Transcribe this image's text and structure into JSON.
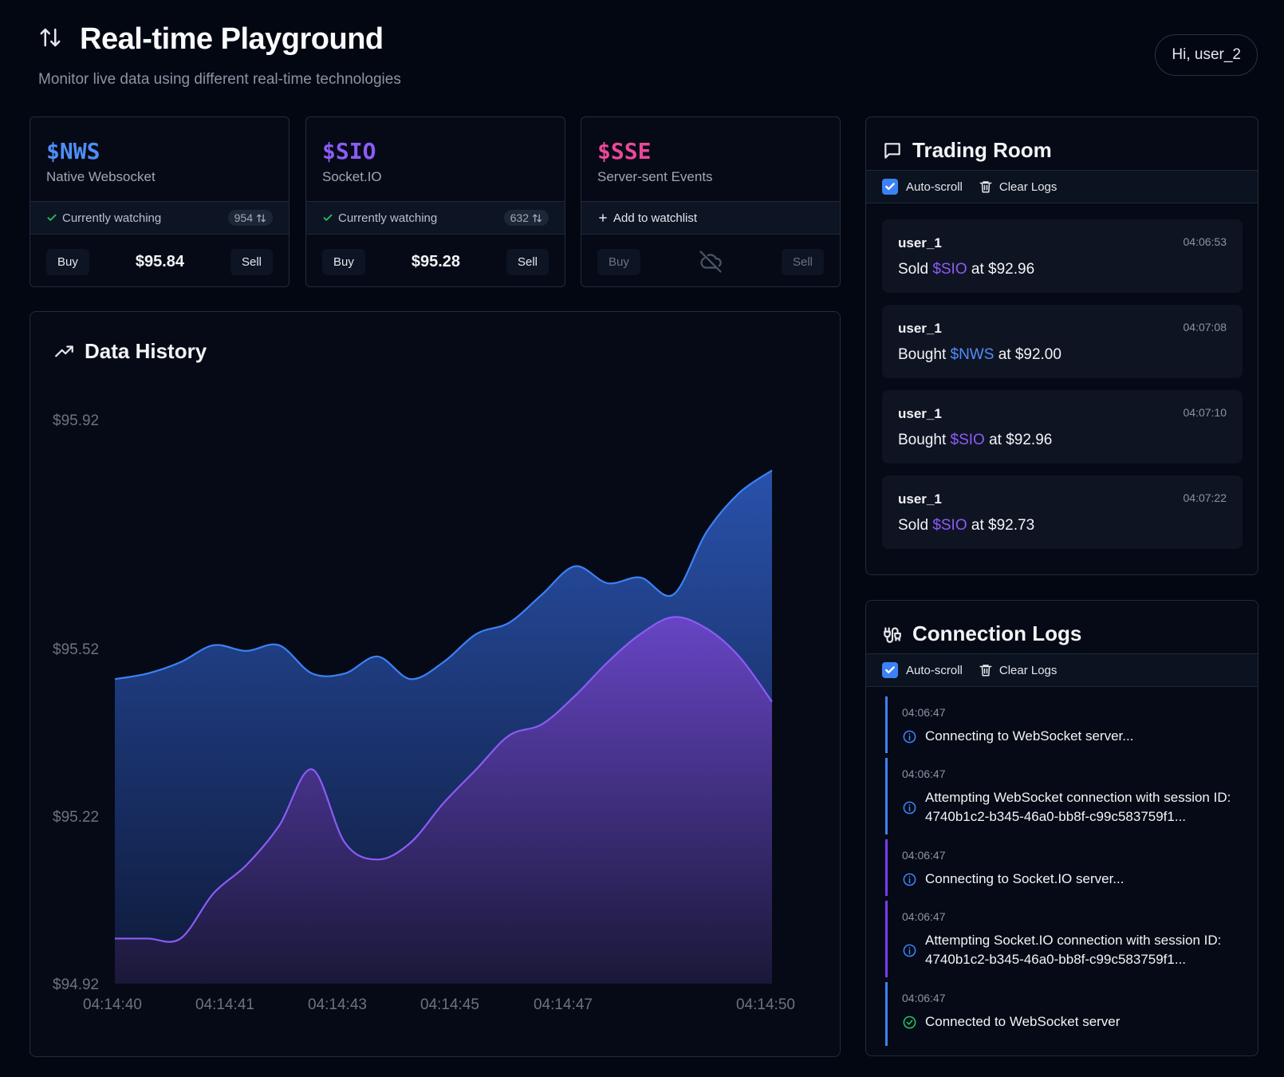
{
  "header": {
    "title": "Real-time Playground",
    "subtitle": "Monitor live data using different real-time technologies",
    "user_greeting": "Hi, user_2"
  },
  "tickers": [
    {
      "symbol": "$NWS",
      "name": "Native Websocket",
      "status": "Currently watching",
      "watchers": "954",
      "price": "$95.84",
      "buy": "Buy",
      "sell": "Sell",
      "color": "#4f8ef7"
    },
    {
      "symbol": "$SIO",
      "name": "Socket.IO",
      "status": "Currently watching",
      "watchers": "632",
      "price": "$95.28",
      "buy": "Buy",
      "sell": "Sell",
      "color": "#8b5cf6"
    },
    {
      "symbol": "$SSE",
      "name": "Server-sent Events",
      "action": "Add to watchlist",
      "buy": "Buy",
      "sell": "Sell",
      "color": "#ec4899"
    }
  ],
  "history": {
    "title": "Data History"
  },
  "chart_data": {
    "type": "area",
    "x": [
      "04:14:40",
      "04:14:40.5",
      "04:14:41",
      "04:14:41.5",
      "04:14:42",
      "04:14:42.5",
      "04:14:43",
      "04:14:43.5",
      "04:14:44",
      "04:14:44.5",
      "04:14:45",
      "04:14:45.5",
      "04:14:46",
      "04:14:46.5",
      "04:14:47",
      "04:14:47.5",
      "04:14:48",
      "04:14:48.5",
      "04:14:49",
      "04:14:49.5",
      "04:14:50"
    ],
    "x_tick_labels": [
      "04:14:40",
      "04:14:41",
      "04:14:43",
      "04:14:45",
      "04:14:47",
      "04:14:50"
    ],
    "y_tick_labels": [
      "$95.92",
      "$95.52",
      "$95.22",
      "$94.92"
    ],
    "ylim": [
      94.92,
      95.92
    ],
    "series": [
      {
        "values": [
          95.46,
          95.47,
          95.49,
          95.52,
          95.51,
          95.52,
          95.47,
          95.47,
          95.5,
          95.46,
          95.49,
          95.54,
          95.56,
          95.61,
          95.66,
          95.63,
          95.64,
          95.61,
          95.72,
          95.79,
          95.83
        ]
      },
      {
        "values": [
          95.0,
          95.0,
          95.0,
          95.08,
          95.13,
          95.2,
          95.3,
          95.17,
          95.14,
          95.17,
          95.24,
          95.3,
          95.36,
          95.38,
          95.43,
          95.49,
          95.54,
          95.57,
          95.55,
          95.5,
          95.42
        ]
      }
    ]
  },
  "trading_room": {
    "title": "Trading Room",
    "auto_scroll": "Auto-scroll",
    "clear": "Clear Logs",
    "messages": [
      {
        "user": "user_1",
        "time": "04:06:53",
        "verb": "Sold",
        "symbol": "$SIO",
        "rest": "at $92.96"
      },
      {
        "user": "user_1",
        "time": "04:07:08",
        "verb": "Bought",
        "symbol": "$NWS",
        "rest": "at $92.00"
      },
      {
        "user": "user_1",
        "time": "04:07:10",
        "verb": "Bought",
        "symbol": "$SIO",
        "rest": "at $92.96"
      },
      {
        "user": "user_1",
        "time": "04:07:22",
        "verb": "Sold",
        "symbol": "$SIO",
        "rest": "at $92.73"
      }
    ]
  },
  "connection_logs": {
    "title": "Connection Logs",
    "auto_scroll": "Auto-scroll",
    "clear": "Clear Logs",
    "entries": [
      {
        "time": "04:06:47",
        "message": "Connecting to WebSocket server...",
        "icon": "info-icon"
      },
      {
        "time": "04:06:47",
        "message": "Attempting WebSocket connection with session ID: 4740b1c2-b345-46a0-bb8f-c99c583759f1...",
        "icon": "info-icon"
      },
      {
        "time": "04:06:47",
        "message": "Connecting to Socket.IO server...",
        "icon": "info-icon"
      },
      {
        "time": "04:06:47",
        "message": "Attempting Socket.IO connection with session ID: 4740b1c2-b345-46a0-bb8f-c99c583759f1...",
        "icon": "info-icon"
      },
      {
        "time": "04:06:47",
        "message": "Connected to WebSocket server",
        "icon": "check-circle-icon"
      }
    ]
  },
  "colors": {
    "background": "#030712",
    "nws": "#4f8ef7",
    "sio": "#8b5cf6",
    "sse": "#ec4899",
    "accent": "#3b82f6"
  }
}
